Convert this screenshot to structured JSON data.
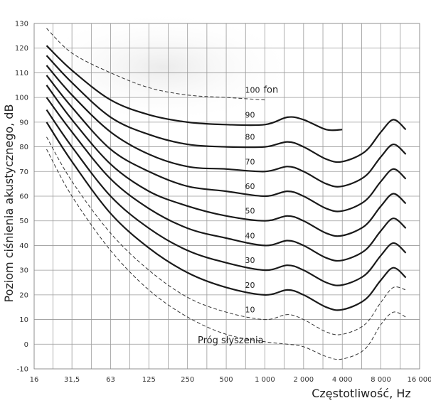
{
  "chart_data": {
    "type": "line",
    "title": "",
    "xlabel": "Częstotliwość, Hz",
    "ylabel": "Poziom ciśnienia akustycznego, dB",
    "xscale": "log",
    "xlim": [
      16,
      16000
    ],
    "ylim": [
      -10,
      130
    ],
    "grid": true,
    "x_ticks": [
      {
        "value": 16,
        "label": "16"
      },
      {
        "value": 31.5,
        "label": "31,5"
      },
      {
        "value": 63,
        "label": "63"
      },
      {
        "value": 125,
        "label": "125"
      },
      {
        "value": 250,
        "label": "250"
      },
      {
        "value": 500,
        "label": "500"
      },
      {
        "value": 1000,
        "label": "1 000"
      },
      {
        "value": 2000,
        "label": "2 000"
      },
      {
        "value": 4000,
        "label": "4 000"
      },
      {
        "value": 8000,
        "label": "8 000"
      },
      {
        "value": 16000,
        "label": "16 000"
      }
    ],
    "y_ticks": [
      -10,
      0,
      10,
      20,
      30,
      40,
      50,
      60,
      70,
      80,
      90,
      100,
      110,
      120,
      130
    ],
    "x": [
      20,
      31.5,
      63,
      125,
      250,
      500,
      1000,
      1500,
      2000,
      3000,
      4000,
      6000,
      8000,
      10000,
      12500
    ],
    "series": [
      {
        "name": "Próg słyszenia",
        "label": "Próg słyszenia",
        "style": "dashed",
        "values": [
          79,
          60,
          38,
          22,
          11,
          4,
          1,
          0,
          -1,
          -5,
          -6,
          -2,
          8,
          13,
          11
        ]
      },
      {
        "name": "10",
        "label": "10",
        "style": "dashed",
        "values": [
          84,
          66,
          45,
          30,
          19,
          13,
          10,
          12,
          10,
          5,
          4,
          8,
          17,
          23,
          22
        ]
      },
      {
        "name": "20",
        "label": "20",
        "style": "solid",
        "values": [
          90,
          74,
          53,
          39,
          29,
          23,
          20,
          22,
          20,
          15,
          14,
          18,
          26,
          31,
          27
        ]
      },
      {
        "name": "30",
        "label": "30",
        "style": "solid",
        "values": [
          95,
          80,
          60,
          47,
          38,
          33,
          30,
          32,
          30,
          25,
          24,
          28,
          36,
          41,
          37
        ]
      },
      {
        "name": "40",
        "label": "40",
        "style": "solid",
        "values": [
          100,
          86,
          67,
          55,
          47,
          43,
          40,
          42,
          40,
          35,
          34,
          38,
          46,
          51,
          47
        ]
      },
      {
        "name": "50",
        "label": "50",
        "style": "solid",
        "values": [
          105,
          91,
          73,
          62,
          56,
          52,
          50,
          52,
          50,
          45,
          44,
          48,
          56,
          61,
          57
        ]
      },
      {
        "name": "60",
        "label": "60",
        "style": "solid",
        "values": [
          109,
          96,
          79,
          70,
          64,
          62,
          60,
          62,
          60,
          55,
          54,
          58,
          66,
          71,
          67
        ]
      },
      {
        "name": "70",
        "label": "70",
        "style": "solid",
        "values": [
          113,
          101,
          86,
          77,
          72,
          71,
          70,
          72,
          70,
          65,
          64,
          68,
          76,
          81,
          77
        ]
      },
      {
        "name": "80",
        "label": "80",
        "style": "solid",
        "values": [
          117,
          106,
          92,
          85,
          81,
          80,
          80,
          82,
          80,
          75,
          74,
          78,
          86,
          91,
          87
        ]
      },
      {
        "name": "90",
        "label": "90",
        "style": "solid",
        "values": [
          121,
          111,
          99,
          93,
          90,
          89,
          89,
          92,
          91,
          87,
          87,
          null,
          null,
          null,
          null
        ]
      },
      {
        "name": "100 fon",
        "label": "100",
        "unit": "fon",
        "style": "dashed",
        "values": [
          128,
          118,
          110,
          104,
          101,
          100,
          99,
          null,
          null,
          null,
          null,
          null,
          null,
          null,
          null
        ]
      }
    ]
  }
}
